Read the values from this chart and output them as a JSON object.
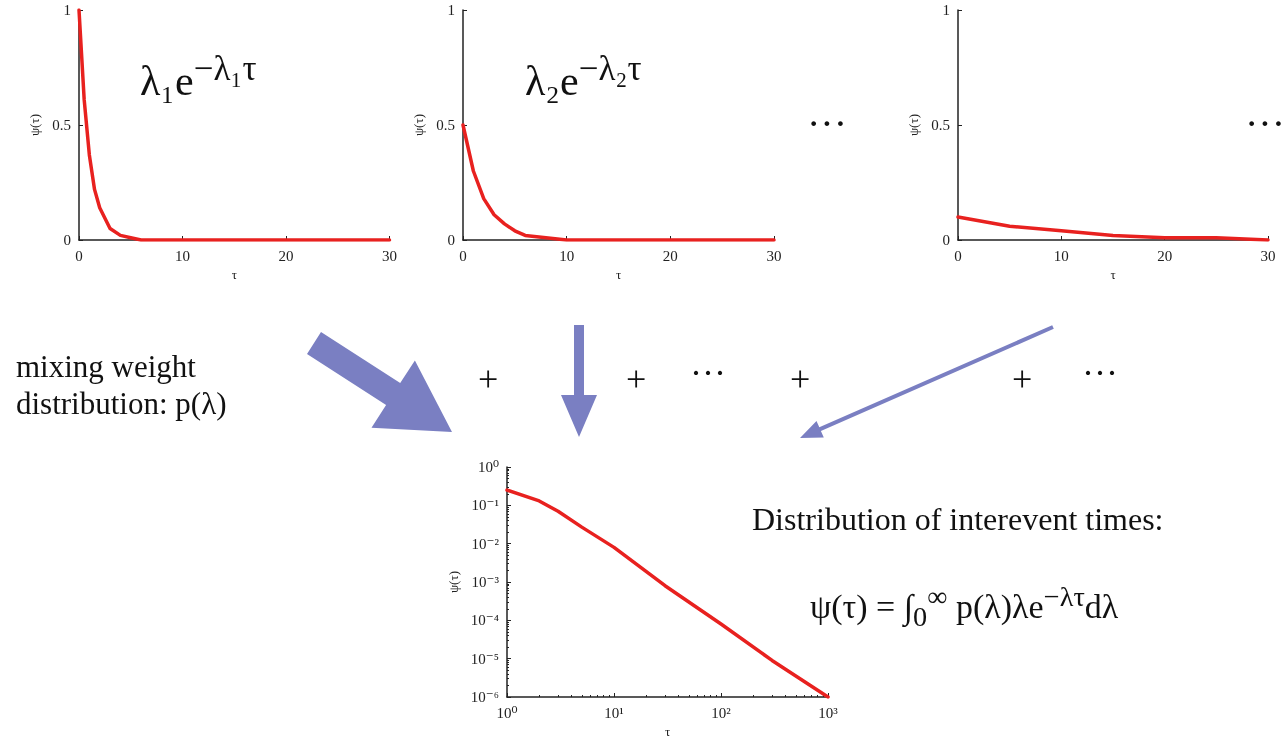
{
  "chart_data": [
    {
      "type": "line",
      "xlabel": "τ",
      "ylabel": "ψ(τ)",
      "annotations": [
        "λ₁e$^{−λ₁τ}$"
      ],
      "xlim": [
        0,
        30
      ],
      "ylim": [
        0,
        1
      ],
      "xticks": [
        0,
        10,
        20,
        30
      ],
      "yticks": [
        0,
        0.5,
        1
      ],
      "series": [
        {
          "color": "#e8211f",
          "x": [
            0,
            0.5,
            1,
            1.5,
            2,
            3,
            4,
            5,
            6,
            8,
            10,
            15,
            20,
            25,
            30
          ],
          "values": [
            1,
            0.61,
            0.37,
            0.22,
            0.14,
            0.05,
            0.02,
            0.01,
            0,
            0,
            0,
            0,
            0,
            0,
            0
          ]
        }
      ],
      "marker": "none"
    },
    {
      "type": "line",
      "xlabel": "τ",
      "ylabel": "ψ(τ)",
      "annotations": [
        "λ₂e$^{−λ₂τ}$",
        "···"
      ],
      "xlim": [
        0,
        30
      ],
      "ylim": [
        0,
        1
      ],
      "xticks": [
        0,
        10,
        20,
        30
      ],
      "yticks": [
        0,
        0.5,
        1
      ],
      "series": [
        {
          "color": "#e8211f",
          "x": [
            0,
            1,
            2,
            3,
            4,
            5,
            6,
            8,
            10,
            15,
            20,
            30
          ],
          "values": [
            0.5,
            0.3,
            0.18,
            0.11,
            0.07,
            0.04,
            0.02,
            0.01,
            0,
            0,
            0,
            0
          ]
        }
      ],
      "marker": "none"
    },
    {
      "type": "line",
      "xlabel": "τ",
      "ylabel": "ψ(τ)",
      "annotations": [
        "···"
      ],
      "xlim": [
        0,
        30
      ],
      "ylim": [
        0,
        1
      ],
      "xticks": [
        0,
        10,
        20,
        30
      ],
      "yticks": [
        0,
        0.5,
        1
      ],
      "series": [
        {
          "color": "#e8211f",
          "x": [
            0,
            5,
            10,
            15,
            20,
            25,
            30
          ],
          "values": [
            0.1,
            0.06,
            0.04,
            0.02,
            0.01,
            0.01,
            0
          ]
        }
      ],
      "marker": "none"
    },
    {
      "type": "line",
      "xlabel": "τ",
      "ylabel": "ψ(τ)",
      "log": "xy",
      "marker": "none",
      "annotations": [
        "mixing weight\ndistribution: p(λ)",
        "+",
        "+",
        "···",
        "+",
        "+",
        "···",
        "Distribution of interevent times:",
        "ψ(τ) = ∫$_{0}$$^{∞}$ p(λ)λe$^{−λτ}$dλ"
      ],
      "xlim": [
        1,
        1000
      ],
      "ylim": [
        1e-06,
        1
      ],
      "xticks": [
        {
          "value": 1,
          "label": "10⁰"
        },
        {
          "value": 10,
          "label": "10¹"
        },
        {
          "value": 100,
          "label": "10²"
        },
        {
          "value": 1000,
          "label": "10³"
        }
      ],
      "yticks": [
        {
          "value": 1e-06,
          "label": "10⁻⁶"
        },
        {
          "value": 1e-05,
          "label": "10⁻⁵"
        },
        {
          "value": 0.0001,
          "label": "10⁻⁴"
        },
        {
          "value": 0.001,
          "label": "10⁻³"
        },
        {
          "value": 0.01,
          "label": "10⁻²"
        },
        {
          "value": 0.1,
          "label": "10⁻¹"
        },
        {
          "value": 1,
          "label": "10⁰"
        }
      ],
      "series": [
        {
          "color": "#e8211f",
          "x": [
            1,
            2,
            3,
            5,
            10,
            30,
            100,
            300,
            1000
          ],
          "values": [
            0.25,
            0.13,
            0.07,
            0.027,
            0.008,
            0.0008,
            8e-05,
            9e-06,
            1e-06
          ]
        }
      ]
    }
  ]
}
